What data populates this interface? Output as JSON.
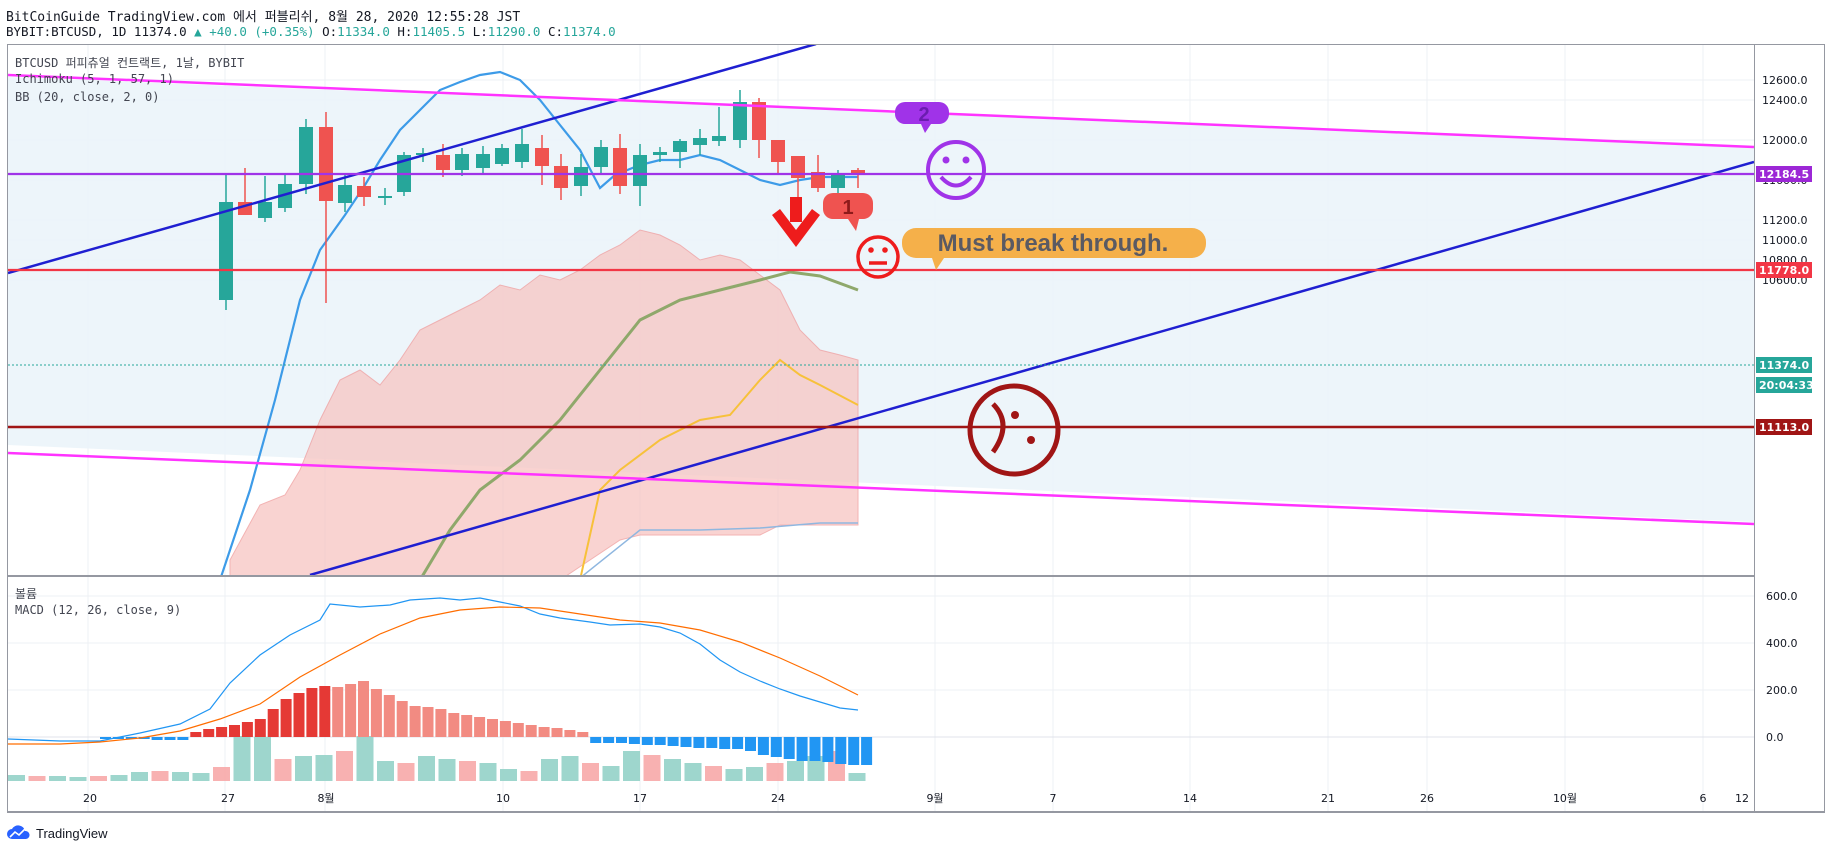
{
  "header": {
    "line1": "BitCoinGuide TradingView.com 에서 퍼블리쉬, 8월 28, 2020 12:55:28 JST",
    "symbol": "BYBIT:BTCUSD, 1D 11374.0",
    "change": "+40.0 (+0.35%)",
    "o_label": "O:",
    "o_value": "11334.0",
    "h_label": "H:",
    "h_value": "11405.5",
    "l_label": "L:",
    "l_value": "11290.0",
    "c_label": "C:",
    "c_value": "11374.0"
  },
  "legend": {
    "title": "BTCUSD 퍼피츄얼 컨트랙트, 1날, BYBIT",
    "ichimoku": "Ichimoku (5, 1, 57, 1)",
    "bb": "BB (20, close, 2, 0)",
    "volume": "볼륨",
    "macd": "MACD (12, 26, close, 9)"
  },
  "price_axis": {
    "ticks": [
      "12600.0",
      "12400.0",
      "12000.0",
      "11600.0",
      "11200.0",
      "11000.0",
      "10800.0",
      "10600.0"
    ],
    "badges": [
      {
        "text": "12184.5",
        "color": "#9c27d6"
      },
      {
        "text": "11778.0",
        "color": "#f23645"
      },
      {
        "text": "11374.0",
        "color": "#26a69a"
      },
      {
        "text": "20:04:33",
        "color": "#26a69a"
      },
      {
        "text": "11113.0",
        "color": "#a01515"
      }
    ]
  },
  "macd_axis": {
    "ticks": [
      "600.0",
      "400.0",
      "200.0",
      "0.0"
    ]
  },
  "time_axis": {
    "ticks": [
      "20",
      "27",
      "8월",
      "10",
      "17",
      "24",
      "9월",
      "7",
      "14",
      "21",
      "26",
      "10월",
      "6",
      "12"
    ]
  },
  "annotations": {
    "callout_text": "Must break through.",
    "bubble_1": "1",
    "bubble_2": "2"
  },
  "colors": {
    "up": "#26a69a",
    "down": "#ef5350",
    "trend_blue": "#1f1fd1",
    "channel_magenta": "#ff33ff",
    "level_purple": "#a033e8",
    "level_red": "#f23645",
    "level_darkred": "#a01515",
    "callout": "#f5b04a"
  },
  "branding": {
    "logo_text": "TradingView"
  }
}
